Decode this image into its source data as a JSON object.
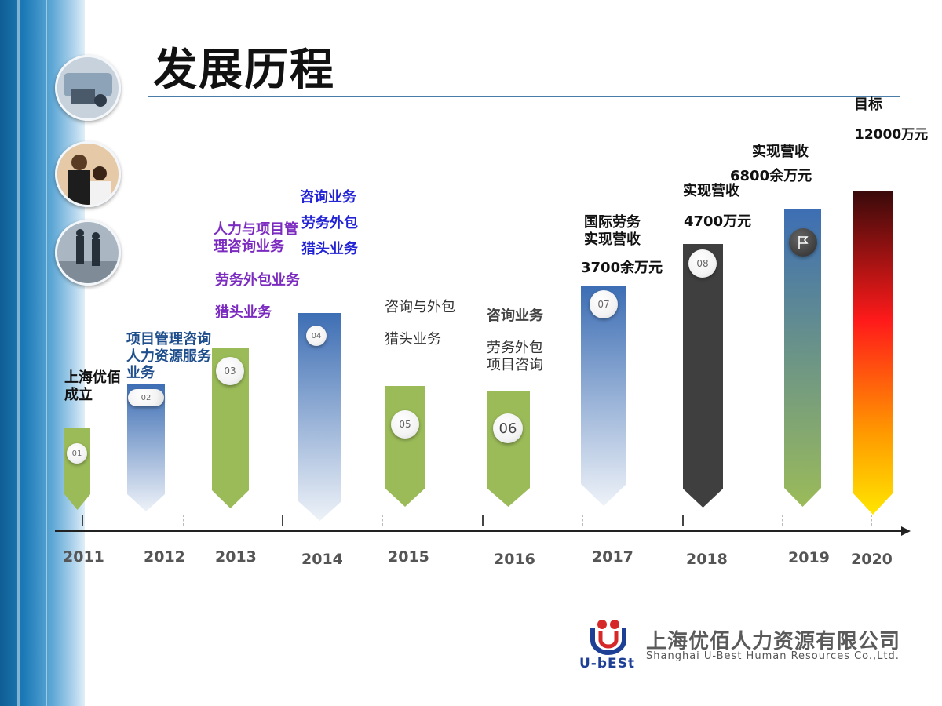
{
  "title": "发展历程",
  "colors": {
    "accent": "#4a7ca8",
    "green": "#9bbb59",
    "blue": "#4f7ec0",
    "dark": "#3f3f3f",
    "red": "#e31a1c"
  },
  "timeline": [
    {
      "year": "2011",
      "badge": "01",
      "color": "green",
      "labels": [
        "上海优佰",
        "成立"
      ]
    },
    {
      "year": "2012",
      "badge": "02",
      "color": "blue-fade",
      "labels": [
        "项目管理咨询",
        "人力资源服务",
        "业务"
      ]
    },
    {
      "year": "2013",
      "badge": "03",
      "color": "green",
      "labels": [
        "人力与项目管",
        "理咨询业务",
        "劳务外包业务",
        "猎头业务"
      ]
    },
    {
      "year": "2014",
      "badge": "04",
      "color": "blue-fade",
      "labels": [
        "咨询业务",
        "劳务外包",
        "猎头业务"
      ]
    },
    {
      "year": "2015",
      "badge": "05",
      "color": "green",
      "labels": [
        "咨询与外包",
        "猎头业务"
      ]
    },
    {
      "year": "2016",
      "badge": "06",
      "color": "green",
      "labels": [
        "咨询业务",
        "劳务外包",
        "项目咨询"
      ]
    },
    {
      "year": "2017",
      "badge": "07",
      "color": "blue-fade",
      "labels": [
        "国际劳务",
        "实现营收",
        "3700余万元"
      ]
    },
    {
      "year": "2018",
      "badge": "08",
      "color": "dark",
      "labels": [
        "实现营收",
        "4700万元"
      ]
    },
    {
      "year": "2019",
      "badge_icon": "flag-icon",
      "color": "blue-green",
      "labels": [
        "实现营收",
        "6800余万元"
      ]
    },
    {
      "year": "2020",
      "color": "red-yellow",
      "labels": [
        "目标",
        "12000万元"
      ]
    }
  ],
  "logo": {
    "company_cn": "上海优佰人力资源有限公司",
    "company_en": "Shanghai U-Best Human Resources Co.,Ltd.",
    "brand": "U-bESt"
  }
}
